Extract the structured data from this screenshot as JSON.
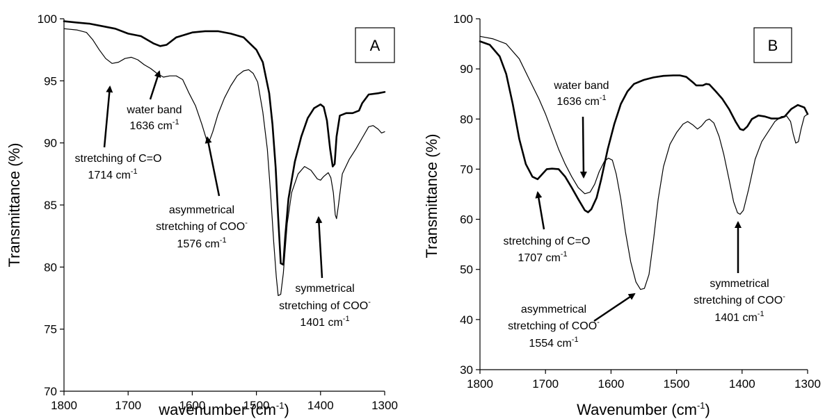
{
  "chart_data": [
    {
      "type": "line",
      "panel_label": "A",
      "xlabel": "wavenumber (cm",
      "xlabel_sup": "-1",
      "xlabel_tail": ")",
      "ylabel": "Transmittance (%)",
      "xlim": [
        1800,
        1300
      ],
      "ylim": [
        70,
        100
      ],
      "xticks": [
        "1800",
        "1700",
        "1600",
        "1500",
        "1400",
        "1300"
      ],
      "yticks": [
        "70",
        "75",
        "80",
        "85",
        "90",
        "95",
        "100"
      ],
      "series": [
        {
          "style": "thick",
          "points": [
            [
              1800,
              99.8
            ],
            [
              1780,
              99.7
            ],
            [
              1760,
              99.6
            ],
            [
              1740,
              99.4
            ],
            [
              1720,
              99.2
            ],
            [
              1700,
              98.8
            ],
            [
              1680,
              98.6
            ],
            [
              1660,
              98.0
            ],
            [
              1650,
              97.8
            ],
            [
              1640,
              97.9
            ],
            [
              1625,
              98.5
            ],
            [
              1600,
              98.9
            ],
            [
              1580,
              99.0
            ],
            [
              1560,
              99.0
            ],
            [
              1540,
              98.8
            ],
            [
              1520,
              98.5
            ],
            [
              1500,
              97.5
            ],
            [
              1490,
              96.5
            ],
            [
              1480,
              94.0
            ],
            [
              1475,
              91.5
            ],
            [
              1470,
              88.0
            ],
            [
              1466,
              84.0
            ],
            [
              1462,
              80.3
            ],
            [
              1458,
              80.2
            ],
            [
              1455,
              82.5
            ],
            [
              1450,
              85.5
            ],
            [
              1440,
              88.5
            ],
            [
              1430,
              90.5
            ],
            [
              1420,
              92.0
            ],
            [
              1410,
              92.8
            ],
            [
              1400,
              93.1
            ],
            [
              1395,
              92.9
            ],
            [
              1390,
              91.8
            ],
            [
              1385,
              89.5
            ],
            [
              1381,
              88.1
            ],
            [
              1378,
              88.3
            ],
            [
              1375,
              90.5
            ],
            [
              1370,
              92.2
            ],
            [
              1360,
              92.4
            ],
            [
              1350,
              92.4
            ],
            [
              1340,
              92.6
            ],
            [
              1335,
              93.2
            ],
            [
              1325,
              93.9
            ],
            [
              1310,
              94.0
            ],
            [
              1300,
              94.1
            ]
          ]
        },
        {
          "style": "thin",
          "points": [
            [
              1800,
              99.2
            ],
            [
              1780,
              99.1
            ],
            [
              1765,
              98.9
            ],
            [
              1755,
              98.3
            ],
            [
              1745,
              97.5
            ],
            [
              1735,
              96.8
            ],
            [
              1725,
              96.4
            ],
            [
              1715,
              96.5
            ],
            [
              1705,
              96.8
            ],
            [
              1695,
              96.9
            ],
            [
              1685,
              96.7
            ],
            [
              1675,
              96.3
            ],
            [
              1665,
              96.0
            ],
            [
              1655,
              95.6
            ],
            [
              1645,
              95.3
            ],
            [
              1635,
              95.4
            ],
            [
              1625,
              95.4
            ],
            [
              1615,
              95.1
            ],
            [
              1605,
              94.0
            ],
            [
              1595,
              93.0
            ],
            [
              1585,
              91.5
            ],
            [
              1578,
              90.3
            ],
            [
              1573,
              90.2
            ],
            [
              1568,
              90.9
            ],
            [
              1560,
              92.3
            ],
            [
              1550,
              93.6
            ],
            [
              1540,
              94.6
            ],
            [
              1530,
              95.4
            ],
            [
              1520,
              95.8
            ],
            [
              1512,
              95.9
            ],
            [
              1505,
              95.6
            ],
            [
              1498,
              94.9
            ],
            [
              1490,
              92.5
            ],
            [
              1483,
              89.5
            ],
            [
              1478,
              86.0
            ],
            [
              1473,
              82.0
            ],
            [
              1469,
              79.2
            ],
            [
              1466,
              77.7
            ],
            [
              1462,
              77.8
            ],
            [
              1458,
              79.5
            ],
            [
              1452,
              83.5
            ],
            [
              1445,
              86.0
            ],
            [
              1435,
              87.5
            ],
            [
              1425,
              88.1
            ],
            [
              1415,
              87.8
            ],
            [
              1405,
              87.1
            ],
            [
              1400,
              87.0
            ],
            [
              1395,
              87.3
            ],
            [
              1388,
              87.6
            ],
            [
              1384,
              87.2
            ],
            [
              1380,
              86.0
            ],
            [
              1377,
              84.2
            ],
            [
              1375,
              83.9
            ],
            [
              1372,
              85.0
            ],
            [
              1366,
              87.5
            ],
            [
              1355,
              88.7
            ],
            [
              1345,
              89.5
            ],
            [
              1335,
              90.4
            ],
            [
              1325,
              91.3
            ],
            [
              1318,
              91.4
            ],
            [
              1310,
              91.1
            ],
            [
              1305,
              90.8
            ],
            [
              1300,
              90.9
            ]
          ]
        }
      ],
      "annotations": [
        {
          "lines": [
            "water band",
            "1636 cm"
          ],
          "sup": "-1",
          "tail": ""
        },
        {
          "lines": [
            "stretching of C=O",
            "1714 cm"
          ],
          "sup": "-1",
          "tail": ""
        },
        {
          "lines": [
            "asymmetrical",
            "stretching of COO",
            "1576 cm"
          ],
          "sup": "-1",
          "coo_sup": "-",
          "tail": ""
        },
        {
          "lines": [
            "symmetrical",
            "stretching of COO",
            "1401 cm"
          ],
          "sup": "-1",
          "coo_sup": "-",
          "tail": ""
        }
      ]
    },
    {
      "type": "line",
      "panel_label": "B",
      "xlabel": "Wavenumber (cm",
      "xlabel_sup": "-1",
      "xlabel_tail": ")",
      "ylabel": "Transmittance (%)",
      "xlim": [
        1800,
        1300
      ],
      "ylim": [
        30,
        100
      ],
      "xticks": [
        "1800",
        "1700",
        "1600",
        "1500",
        "1400",
        "1300"
      ],
      "yticks": [
        "30",
        "40",
        "50",
        "60",
        "70",
        "80",
        "90",
        "100"
      ],
      "series": [
        {
          "style": "thick",
          "points": [
            [
              1800,
              95.5
            ],
            [
              1785,
              94.8
            ],
            [
              1770,
              92.5
            ],
            [
              1760,
              89.0
            ],
            [
              1750,
              83.0
            ],
            [
              1740,
              76.0
            ],
            [
              1730,
              71.0
            ],
            [
              1720,
              68.5
            ],
            [
              1712,
              68.0
            ],
            [
              1705,
              69.0
            ],
            [
              1698,
              70.0
            ],
            [
              1690,
              70.1
            ],
            [
              1680,
              70.0
            ],
            [
              1670,
              68.5
            ],
            [
              1660,
              66.3
            ],
            [
              1650,
              64.0
            ],
            [
              1640,
              61.8
            ],
            [
              1635,
              61.4
            ],
            [
              1630,
              62.0
            ],
            [
              1622,
              64.3
            ],
            [
              1615,
              68.0
            ],
            [
              1605,
              74.0
            ],
            [
              1595,
              79.0
            ],
            [
              1585,
              83.0
            ],
            [
              1575,
              85.5
            ],
            [
              1565,
              87.0
            ],
            [
              1550,
              87.8
            ],
            [
              1535,
              88.3
            ],
            [
              1520,
              88.6
            ],
            [
              1505,
              88.7
            ],
            [
              1495,
              88.7
            ],
            [
              1485,
              88.4
            ],
            [
              1475,
              87.3
            ],
            [
              1470,
              86.7
            ],
            [
              1460,
              86.7
            ],
            [
              1455,
              87.0
            ],
            [
              1450,
              86.9
            ],
            [
              1440,
              85.5
            ],
            [
              1430,
              84.0
            ],
            [
              1420,
              82.0
            ],
            [
              1410,
              79.5
            ],
            [
              1403,
              78.0
            ],
            [
              1398,
              77.8
            ],
            [
              1392,
              78.5
            ],
            [
              1385,
              80.0
            ],
            [
              1375,
              80.7
            ],
            [
              1365,
              80.5
            ],
            [
              1355,
              80.1
            ],
            [
              1345,
              80.1
            ],
            [
              1335,
              80.5
            ],
            [
              1325,
              82.0
            ],
            [
              1315,
              82.8
            ],
            [
              1305,
              82.3
            ],
            [
              1300,
              81.0
            ]
          ]
        },
        {
          "style": "thin",
          "points": [
            [
              1800,
              96.5
            ],
            [
              1780,
              96.0
            ],
            [
              1760,
              95.0
            ],
            [
              1740,
              92.0
            ],
            [
              1725,
              88.0
            ],
            [
              1710,
              84.0
            ],
            [
              1700,
              81.0
            ],
            [
              1690,
              77.5
            ],
            [
              1680,
              74.0
            ],
            [
              1670,
              71.0
            ],
            [
              1660,
              68.5
            ],
            [
              1650,
              66.3
            ],
            [
              1640,
              65.1
            ],
            [
              1632,
              65.4
            ],
            [
              1625,
              67.0
            ],
            [
              1618,
              69.5
            ],
            [
              1610,
              71.6
            ],
            [
              1604,
              72.2
            ],
            [
              1598,
              71.8
            ],
            [
              1592,
              69.0
            ],
            [
              1585,
              64.0
            ],
            [
              1578,
              57.5
            ],
            [
              1570,
              51.5
            ],
            [
              1562,
              47.5
            ],
            [
              1555,
              46.0
            ],
            [
              1549,
              46.2
            ],
            [
              1542,
              49.0
            ],
            [
              1535,
              56.0
            ],
            [
              1528,
              64.0
            ],
            [
              1520,
              70.5
            ],
            [
              1510,
              75.0
            ],
            [
              1500,
              77.3
            ],
            [
              1490,
              79.0
            ],
            [
              1483,
              79.5
            ],
            [
              1475,
              78.8
            ],
            [
              1468,
              78.0
            ],
            [
              1462,
              78.6
            ],
            [
              1455,
              79.7
            ],
            [
              1450,
              80.0
            ],
            [
              1443,
              79.2
            ],
            [
              1435,
              76.5
            ],
            [
              1428,
              73.0
            ],
            [
              1420,
              68.0
            ],
            [
              1413,
              63.5
            ],
            [
              1407,
              61.3
            ],
            [
              1403,
              61.0
            ],
            [
              1398,
              61.8
            ],
            [
              1390,
              66.0
            ],
            [
              1380,
              72.0
            ],
            [
              1370,
              75.5
            ],
            [
              1360,
              77.5
            ],
            [
              1350,
              79.5
            ],
            [
              1340,
              80.5
            ],
            [
              1332,
              80.6
            ],
            [
              1326,
              79.5
            ],
            [
              1322,
              77.0
            ],
            [
              1318,
              75.2
            ],
            [
              1314,
              75.5
            ],
            [
              1310,
              78.0
            ],
            [
              1305,
              80.5
            ],
            [
              1300,
              81.0
            ]
          ]
        }
      ],
      "annotations": [
        {
          "lines": [
            "water band",
            "1636 cm"
          ],
          "sup": "-1",
          "tail": ""
        },
        {
          "lines": [
            "stretching of C=O",
            "1707 cm"
          ],
          "sup": "-1",
          "tail": ""
        },
        {
          "lines": [
            "asymmetrical",
            "stretching of COO",
            "1554 cm"
          ],
          "sup": "-1",
          "coo_sup": "-",
          "tail": ""
        },
        {
          "lines": [
            "symmetrical",
            "stretching of COO",
            "1401 cm"
          ],
          "sup": "-1",
          "coo_sup": "-",
          "tail": ""
        }
      ]
    }
  ]
}
